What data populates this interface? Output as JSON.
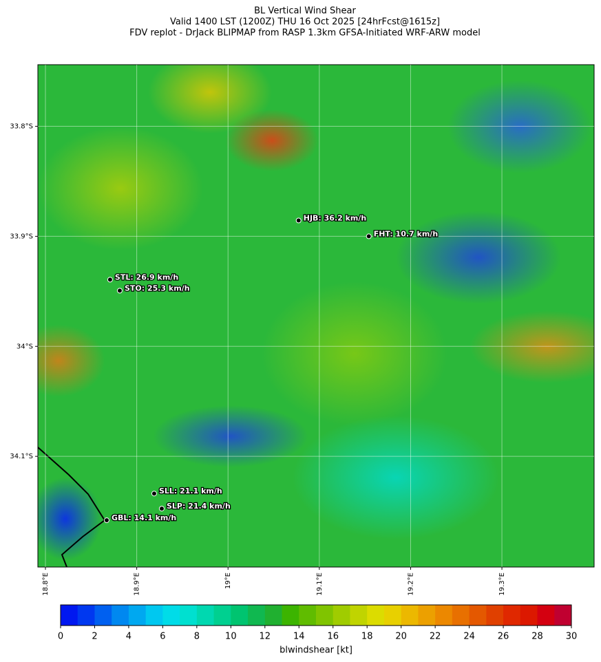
{
  "title": [
    "BL Vertical Wind Shear",
    "Valid 1400 LST (1200Z) THU 16 Oct 2025 [24hrFcst@1615z]",
    "FDV replot - DrJack BLIPMAP from RASP 1.3km GFSA-Initiated WRF-ARW model"
  ],
  "map": {
    "xlim": [
      18.7917,
      19.401
    ],
    "ylim": [
      -34.2006,
      -33.744
    ],
    "xticks": [
      {
        "value": 18.8,
        "label": "18.8°E"
      },
      {
        "value": 18.9,
        "label": "18.9°E"
      },
      {
        "value": 19.0,
        "label": "19°E"
      },
      {
        "value": 19.1,
        "label": "19.1°E"
      },
      {
        "value": 19.2,
        "label": "19.2°E"
      },
      {
        "value": 19.3,
        "label": "19.3°E"
      }
    ],
    "yticks": [
      {
        "value": -33.8,
        "label": "33.8°S"
      },
      {
        "value": -33.9,
        "label": "33.9°S"
      },
      {
        "value": -34.0,
        "label": "34°S"
      },
      {
        "value": -34.1,
        "label": "34.1°S"
      }
    ],
    "stations": [
      {
        "label": "HJB: 36.2 km/h",
        "lon": 19.0773,
        "lat": -33.8856
      },
      {
        "label": "FHT: 10.7 km/h",
        "lon": 19.1542,
        "lat": -33.9
      },
      {
        "label": "STL: 26.9 km/h",
        "lon": 18.8708,
        "lat": -33.9394
      },
      {
        "label": "STO: 25.3 km/h",
        "lon": 18.8814,
        "lat": -33.9494
      },
      {
        "label": "SLL: 21.1 km/h",
        "lon": 18.9191,
        "lat": -34.1338
      },
      {
        "label": "SLP: 21.4 km/h",
        "lon": 18.9274,
        "lat": -34.1475
      },
      {
        "label": "GBL: 14.1 km/h",
        "lon": 18.8671,
        "lat": -34.1581
      }
    ]
  },
  "colorbar": {
    "label": "blwindshear [kt]",
    "clim": [
      0,
      30
    ],
    "ticks": [
      0,
      2,
      4,
      6,
      8,
      10,
      12,
      14,
      16,
      18,
      20,
      22,
      24,
      26,
      28,
      30
    ],
    "colors": [
      "#0018f0",
      "#0038f0",
      "#0060f0",
      "#0088f0",
      "#00a8f0",
      "#00c8f0",
      "#00dce8",
      "#00e0d0",
      "#00d8b0",
      "#00d090",
      "#00c470",
      "#10b850",
      "#20b030",
      "#3cb400",
      "#60bc00",
      "#80c400",
      "#a0cc00",
      "#c0d400",
      "#dcdc00",
      "#e8d000",
      "#ecb800",
      "#eca000",
      "#ec8800",
      "#e87000",
      "#e45800",
      "#e04000",
      "#e02800",
      "#dc1800",
      "#d40010",
      "#c00030"
    ]
  }
}
